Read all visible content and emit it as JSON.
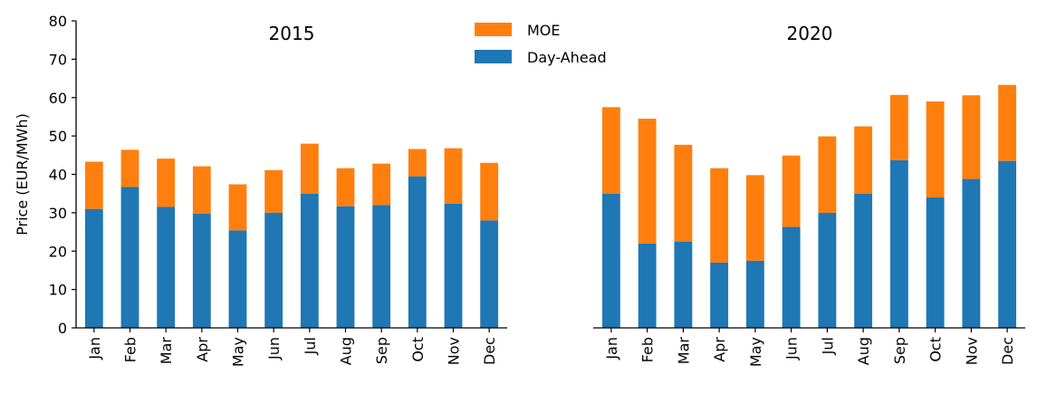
{
  "chart_data": {
    "type": "bar",
    "stacked": true,
    "ylabel": "Price (EUR/MWh)",
    "ylim": [
      0,
      80
    ],
    "yticks": [
      0,
      10,
      20,
      30,
      40,
      50,
      60,
      70,
      80
    ],
    "legend": {
      "placement": "top-center",
      "entries": [
        {
          "name": "MOE",
          "color": "#ff7f0e"
        },
        {
          "name": "Day-Ahead",
          "color": "#1f77b4"
        }
      ]
    },
    "panels": [
      {
        "title": "2015",
        "categories": [
          "Jan",
          "Feb",
          "Mar",
          "Apr",
          "May",
          "Jun",
          "Jul",
          "Aug",
          "Sep",
          "Oct",
          "Nov",
          "Dec"
        ],
        "series": [
          {
            "name": "Day-Ahead",
            "color": "#1f77b4",
            "values": [
              31.0,
              36.7,
              31.5,
              29.8,
              25.4,
              30.0,
              35.0,
              31.7,
              32.0,
              39.5,
              32.4,
              28.0
            ]
          },
          {
            "name": "MOE",
            "color": "#ff7f0e",
            "values": [
              12.3,
              9.7,
              12.6,
              12.3,
              12.0,
              11.1,
              13.0,
              9.9,
              10.8,
              7.1,
              14.4,
              15.0
            ]
          }
        ]
      },
      {
        "title": "2020",
        "categories": [
          "Jan",
          "Feb",
          "Mar",
          "Apr",
          "May",
          "Jun",
          "Jul",
          "Aug",
          "Sep",
          "Oct",
          "Nov",
          "Dec"
        ],
        "series": [
          {
            "name": "Day-Ahead",
            "color": "#1f77b4",
            "values": [
              35.0,
              22.0,
              22.5,
              17.0,
              17.5,
              26.3,
              30.0,
              35.0,
              43.7,
              34.0,
              38.8,
              43.5
            ]
          },
          {
            "name": "MOE",
            "color": "#ff7f0e",
            "values": [
              22.5,
              32.5,
              25.2,
              24.6,
              22.3,
              18.6,
              19.9,
              17.5,
              17.0,
              25.0,
              21.8,
              19.8
            ]
          }
        ]
      }
    ]
  }
}
